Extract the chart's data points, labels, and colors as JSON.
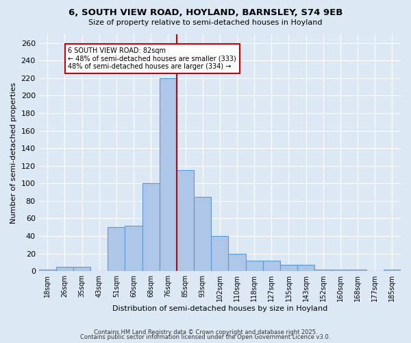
{
  "title": "6, SOUTH VIEW ROAD, HOYLAND, BARNSLEY, S74 9EB",
  "subtitle": "Size of property relative to semi-detached houses in Hoyland",
  "xlabel": "Distribution of semi-detached houses by size in Hoyland",
  "ylabel": "Number of semi-detached properties",
  "categories": [
    "18sqm",
    "26sqm",
    "35sqm",
    "43sqm",
    "51sqm",
    "60sqm",
    "68sqm",
    "76sqm",
    "85sqm",
    "93sqm",
    "102sqm",
    "110sqm",
    "118sqm",
    "127sqm",
    "135sqm",
    "143sqm",
    "152sqm",
    "160sqm",
    "168sqm",
    "177sqm",
    "185sqm"
  ],
  "values": [
    2,
    5,
    5,
    0,
    50,
    52,
    100,
    220,
    115,
    85,
    40,
    20,
    12,
    12,
    7,
    7,
    2,
    2,
    2,
    0,
    2
  ],
  "bar_color": "#aec6e8",
  "bar_edge_color": "#5b9bd5",
  "vline_x_idx": 7.5,
  "marker_label": "6 SOUTH VIEW ROAD: 82sqm",
  "smaller_pct": 48,
  "smaller_count": 333,
  "larger_pct": 48,
  "larger_count": 334,
  "annotation_box_color": "#ffffff",
  "annotation_box_edge": "#cc0000",
  "vline_color": "#cc0000",
  "ylim": [
    0,
    270
  ],
  "yticks": [
    0,
    20,
    40,
    60,
    80,
    100,
    120,
    140,
    160,
    180,
    200,
    220,
    240,
    260
  ],
  "background_color": "#dde8f5",
  "grid_color": "#ffffff",
  "footer1": "Contains HM Land Registry data © Crown copyright and database right 2025.",
  "footer2": "Contains public sector information licensed under the Open Government Licence v3.0."
}
